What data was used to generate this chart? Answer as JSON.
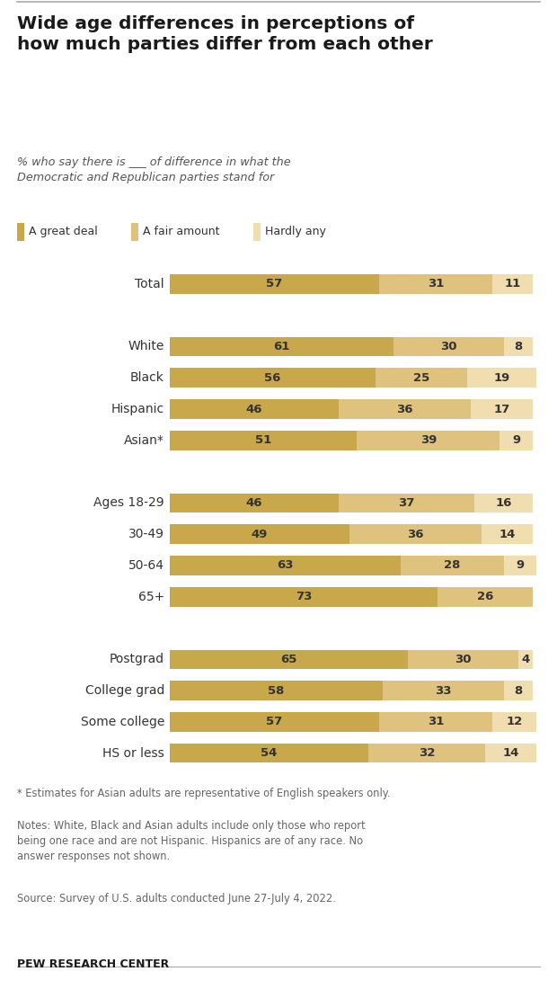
{
  "title": "Wide age differences in perceptions of\nhow much parties differ from each other",
  "subtitle": "% who say there is ___ of difference in what the\nDemocratic and Republican parties stand for",
  "categories": [
    "Total",
    "",
    "White",
    "Black",
    "Hispanic",
    "Asian*",
    "",
    "Ages 18-29",
    "30-49",
    "50-64",
    "65+",
    "",
    "Postgrad",
    "College grad",
    "Some college",
    "HS or less"
  ],
  "values_great_deal": [
    57,
    null,
    61,
    56,
    46,
    51,
    null,
    46,
    49,
    63,
    73,
    null,
    65,
    58,
    57,
    54
  ],
  "values_fair_amount": [
    31,
    null,
    30,
    25,
    36,
    39,
    null,
    37,
    36,
    28,
    26,
    null,
    30,
    33,
    31,
    32
  ],
  "values_hardly_any": [
    11,
    null,
    8,
    19,
    17,
    9,
    null,
    16,
    14,
    9,
    null,
    null,
    4,
    8,
    12,
    14
  ],
  "color_great_deal": "#c8a84b",
  "color_fair_amount": "#dfc27d",
  "color_hardly_any": "#f0deb0",
  "footnote_star": "* Estimates for Asian adults are representative of English speakers only.",
  "footnote_notes": "Notes: White, Black and Asian adults include only those who report\nbeing one race and are not Hispanic. Hispanics are of any race. No\nanswer responses not shown.",
  "footnote_source": "Source: Survey of U.S. adults conducted June 27-July 4, 2022.",
  "source_bold": "PEW RESEARCH CENTER",
  "bg_color": "#ffffff",
  "bar_height": 0.62,
  "label_color": "#333333",
  "title_color": "#1a1a1a",
  "subtitle_color": "#555555",
  "footnote_color": "#666666"
}
